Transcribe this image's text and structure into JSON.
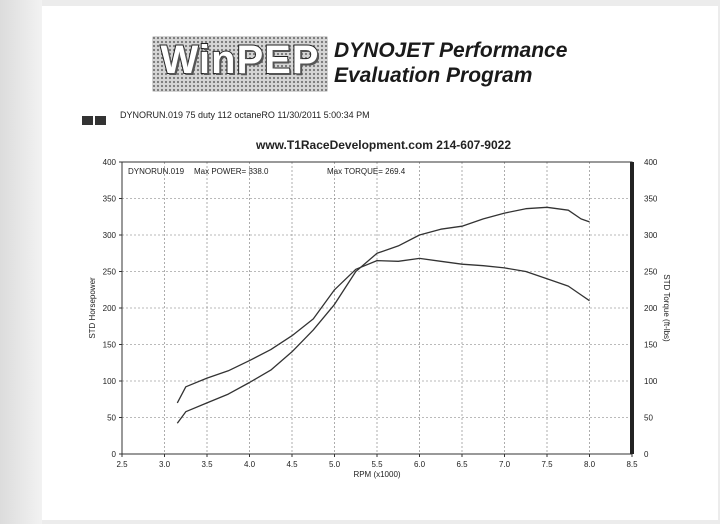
{
  "header": {
    "logo_text": "WinPEP",
    "title_line1": "DYNOJET Performance",
    "title_line2": "Evaluation Program",
    "run_info": "DYNORUN.019  75 duty 112 octaneRO  11/30/2011 5:00:34 PM",
    "website": "www.T1RaceDevelopment.com  214-607-9022"
  },
  "colors": {
    "curve": "#333333",
    "grid": "#777777",
    "paper": "#ffffff"
  },
  "chart_data": {
    "type": "line",
    "annotation_run": "DYNORUN.019",
    "annotation_power": "Max POWER= 338.0",
    "annotation_torque": "Max TORQUE= 269.4",
    "xlabel": "RPM (x1000)",
    "ylabel_left": "STD Horsepower",
    "ylabel_right": "STD Torque (ft-lbs)",
    "xlim": [
      2.5,
      8.5
    ],
    "ylim": [
      0,
      400
    ],
    "x_ticks": [
      "2.5",
      "3.0",
      "3.5",
      "4.0",
      "4.5",
      "5.0",
      "5.5",
      "6.0",
      "6.5",
      "7.0",
      "7.5",
      "8.0",
      "8.5"
    ],
    "y_ticks": [
      "0",
      "50",
      "100",
      "150",
      "200",
      "250",
      "300",
      "350",
      "400"
    ],
    "grid": true,
    "series": [
      {
        "x": [
          3.15,
          3.25,
          3.5,
          3.75,
          4.0,
          4.25,
          4.5,
          4.75,
          5.0,
          5.25,
          5.5,
          5.75,
          6.0,
          6.25,
          6.5,
          6.75,
          7.0,
          7.25,
          7.5,
          7.75,
          7.9,
          8.0
        ],
        "values": [
          42,
          58,
          70,
          82,
          98,
          115,
          140,
          170,
          205,
          250,
          275,
          285,
          300,
          308,
          312,
          322,
          330,
          336,
          338,
          334,
          322,
          318
        ]
      },
      {
        "x": [
          3.15,
          3.25,
          3.5,
          3.75,
          4.0,
          4.25,
          4.5,
          4.75,
          5.0,
          5.25,
          5.5,
          5.75,
          6.0,
          6.25,
          6.5,
          6.75,
          7.0,
          7.25,
          7.5,
          7.75,
          7.9,
          8.0
        ],
        "values": [
          70,
          92,
          104,
          114,
          128,
          143,
          162,
          185,
          225,
          253,
          265,
          264,
          268,
          264,
          260,
          258,
          255,
          250,
          240,
          230,
          218,
          210
        ]
      }
    ]
  }
}
